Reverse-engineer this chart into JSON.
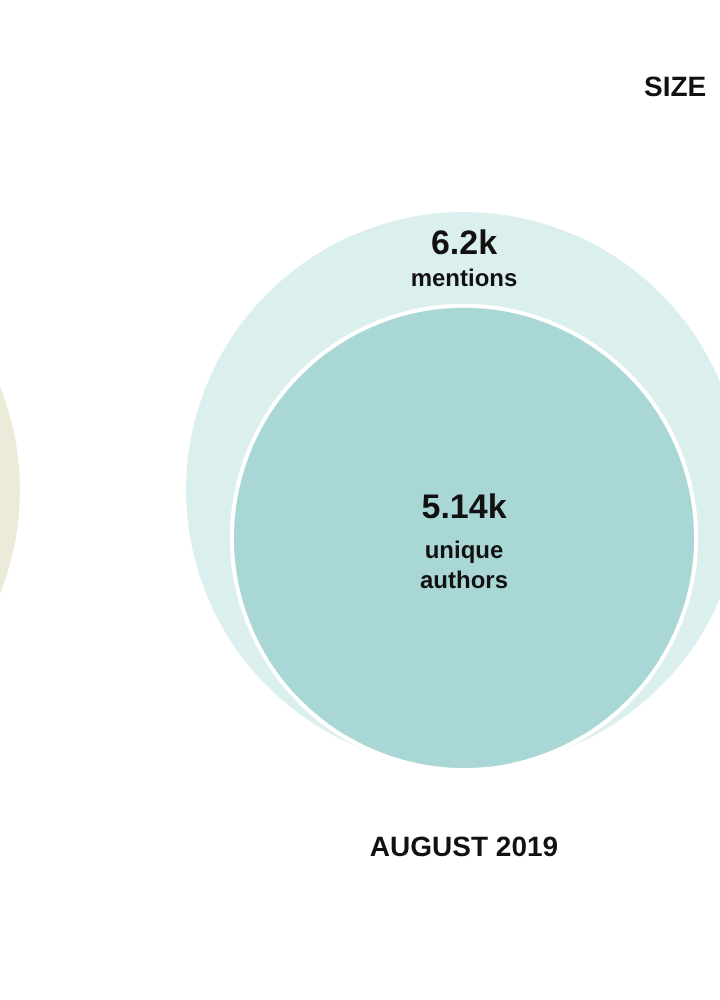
{
  "chart_data": {
    "type": "other",
    "annotations": [
      "SIZE"
    ],
    "categories": [
      "AUGUST 2019"
    ],
    "series": [
      {
        "name": "mentions",
        "color": "#dcefef",
        "values": [
          6200
        ],
        "value_labels": [
          "6.2k"
        ]
      },
      {
        "name": "unique authors",
        "color": "#a9d7d5",
        "values": [
          5140
        ],
        "value_labels": [
          "5.14k"
        ]
      }
    ]
  }
}
